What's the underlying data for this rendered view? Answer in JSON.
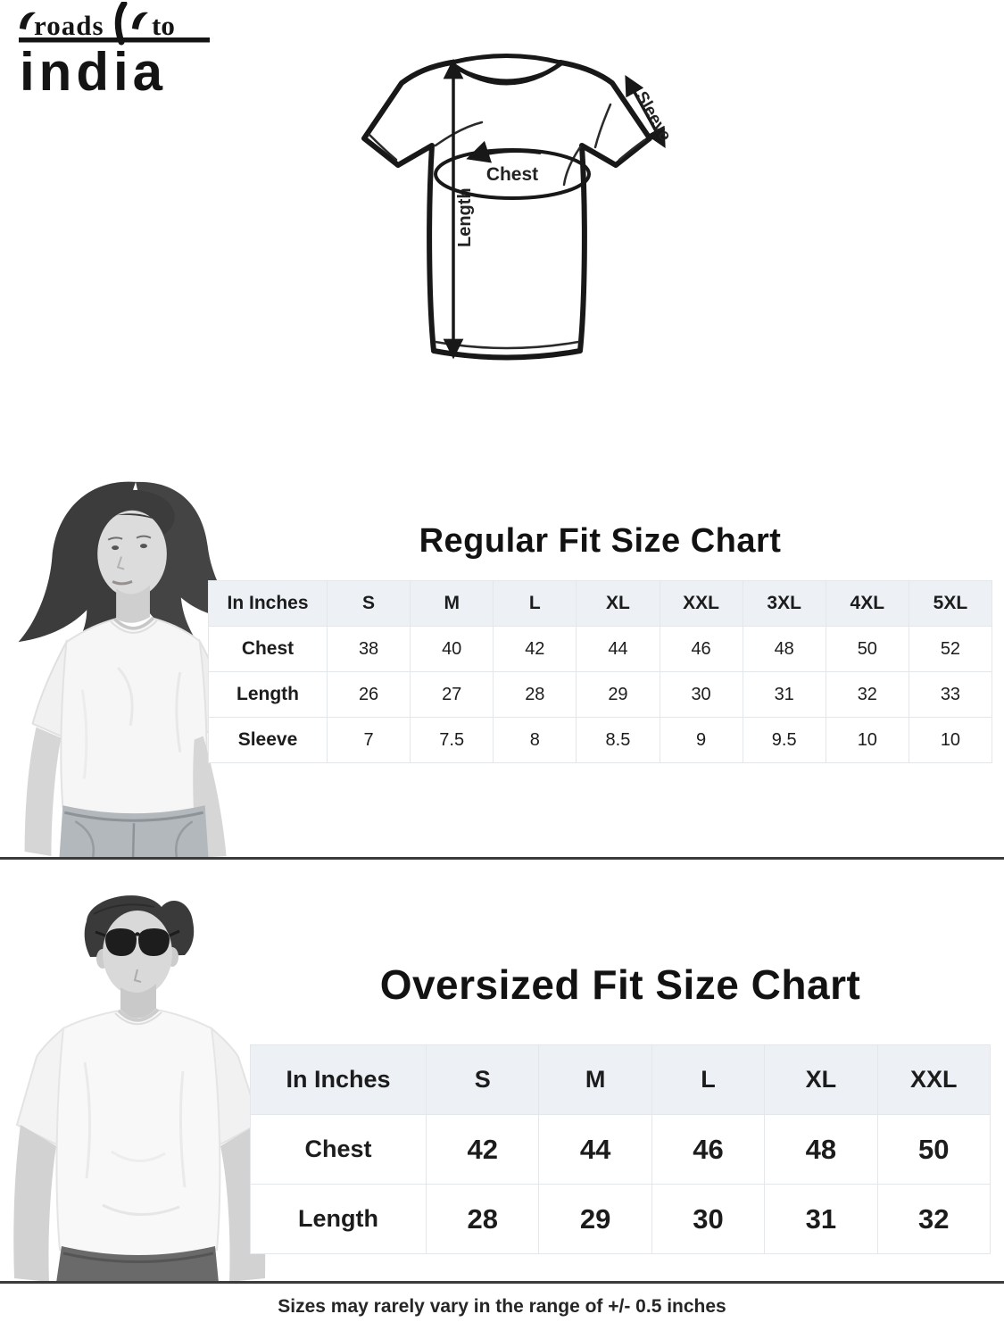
{
  "logo": {
    "word1": "roads",
    "word2": "to",
    "word3": "india"
  },
  "diagram": {
    "chest_label": "Chest",
    "length_label": "Length",
    "sleeve_label": "Sleeve"
  },
  "regular_section": {
    "title": "Regular Fit Size Chart",
    "table": {
      "unit_header": "In Inches",
      "size_headers": [
        "S",
        "M",
        "L",
        "XL",
        "XXL",
        "3XL",
        "4XL",
        "5XL"
      ],
      "rows": [
        {
          "label": "Chest",
          "values": [
            "38",
            "40",
            "42",
            "44",
            "46",
            "48",
            "50",
            "52"
          ]
        },
        {
          "label": "Length",
          "values": [
            "26",
            "27",
            "28",
            "29",
            "30",
            "31",
            "32",
            "33"
          ]
        },
        {
          "label": "Sleeve",
          "values": [
            "7",
            "7.5",
            "8",
            "8.5",
            "9",
            "9.5",
            "10",
            "10"
          ]
        }
      ]
    }
  },
  "oversized_section": {
    "title": "Oversized Fit Size Chart",
    "table": {
      "unit_header": "In Inches",
      "size_headers": [
        "S",
        "M",
        "L",
        "XL",
        "XXL"
      ],
      "rows": [
        {
          "label": "Chest",
          "values": [
            "42",
            "44",
            "46",
            "48",
            "50"
          ]
        },
        {
          "label": "Length",
          "values": [
            "28",
            "29",
            "30",
            "31",
            "32"
          ]
        }
      ]
    }
  },
  "footer": {
    "note": "Sizes may rarely vary in the range of +/- 0.5 inches"
  },
  "colors": {
    "table_header_bg": "#edf1f5",
    "table_border": "#e4e7ea",
    "text": "#1c1c1c",
    "divider": "#3b3b3b"
  }
}
